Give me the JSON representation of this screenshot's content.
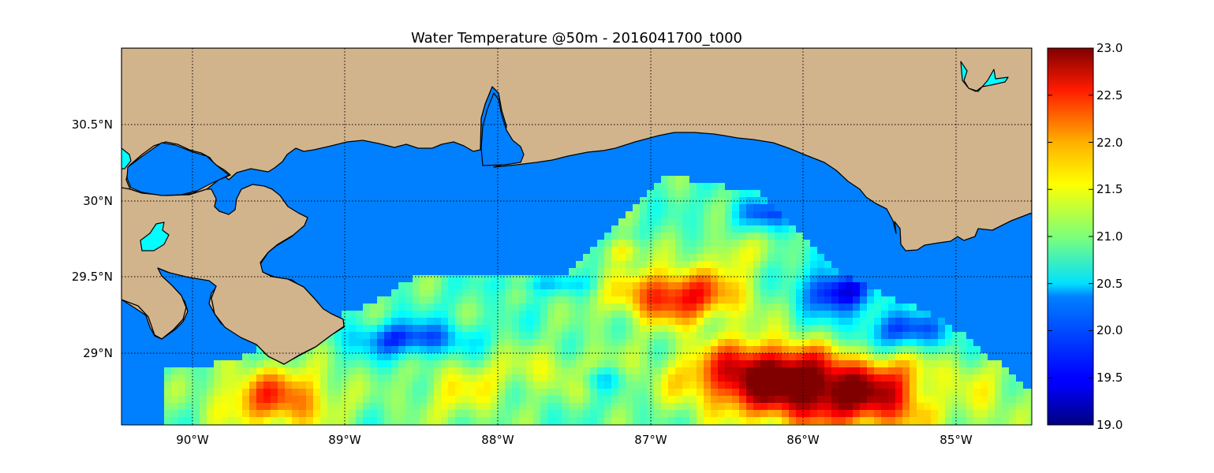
{
  "title": "Water Temperature @50m - 2016041700_t000",
  "axes": {
    "lon_range": [
      -90.46,
      -84.5
    ],
    "lat_range": [
      28.55,
      31.0
    ],
    "lon_ticks": [
      -90,
      -89,
      -88,
      -87,
      -86,
      -85
    ],
    "lon_tick_labels": [
      "90°W",
      "89°W",
      "88°W",
      "87°W",
      "86°W",
      "85°W"
    ],
    "lat_ticks": [
      29.0,
      29.5,
      30.0,
      30.5
    ],
    "lat_tick_labels": [
      "29°N",
      "29.5°N",
      "30°N",
      "30.5°N"
    ],
    "grid": true,
    "grid_style": "dotted"
  },
  "colorbar": {
    "range": [
      19.0,
      23.0
    ],
    "tick_labels": [
      "19.0",
      "19.5",
      "20.0",
      "20.5",
      "21.0",
      "21.5",
      "22.0",
      "22.5",
      "23.0"
    ],
    "colormap": "jet",
    "placement": "right"
  },
  "colors": {
    "land": "#d2b48c",
    "water_masked": "#0080ff",
    "inland_lakes": "#00ffff",
    "coastline": "#000000"
  }
}
